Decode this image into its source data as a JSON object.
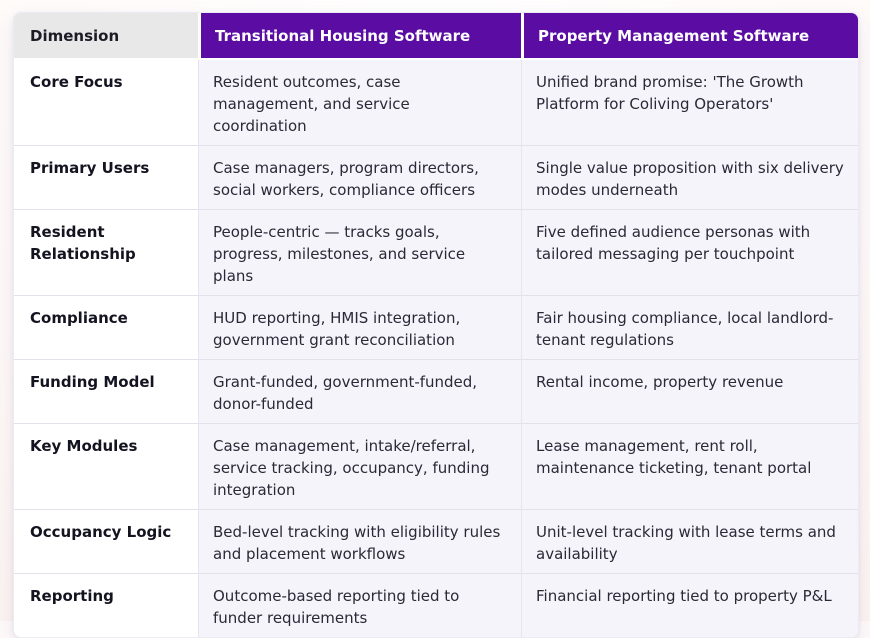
{
  "colors": {
    "header_purple": "#5a0ca3",
    "header_gray": "#e9e8e8",
    "row_lavender": "#f5f4fb",
    "row_white": "#ffffff",
    "border": "#e4e1ed",
    "page_background_pink": "#fbf1ec",
    "header_text": "#ffffff",
    "body_text": "#2a2935"
  },
  "table": {
    "columns": [
      {
        "label": "Dimension"
      },
      {
        "label": "Transitional Housing Software"
      },
      {
        "label": "Property Management Software"
      }
    ],
    "rows": [
      {
        "dimension": "Core Focus",
        "transitional": "Resident outcomes, case management, and service coordination",
        "property": "Unified brand promise: 'The Growth Platform for Coliving Operators'"
      },
      {
        "dimension": "Primary Users",
        "transitional": "Case managers, program directors, social workers, compliance officers",
        "property": "Single value proposition with six delivery modes underneath"
      },
      {
        "dimension": "Resident Relationship",
        "transitional": "People-centric — tracks goals, progress, milestones, and service plans",
        "property": "Five defined audience personas with tailored messaging per touchpoint"
      },
      {
        "dimension": "Compliance",
        "transitional": "HUD reporting, HMIS integration, government grant reconciliation",
        "property": "Fair housing compliance, local landlord-tenant regulations"
      },
      {
        "dimension": "Funding Model",
        "transitional": "Grant-funded, government-funded, donor-funded",
        "property": "Rental income, property revenue"
      },
      {
        "dimension": "Key Modules",
        "transitional": "Case management, intake/referral, service tracking, occupancy, funding integration",
        "property": "Lease management, rent roll, maintenance ticketing, tenant portal"
      },
      {
        "dimension": "Occupancy Logic",
        "transitional": "Bed-level tracking with eligibility rules and placement workflows",
        "property": "Unit-level tracking with lease terms and availability"
      },
      {
        "dimension": "Reporting",
        "transitional": "Outcome-based reporting tied to funder requirements",
        "property": "Financial reporting tied to property P&L"
      }
    ]
  }
}
